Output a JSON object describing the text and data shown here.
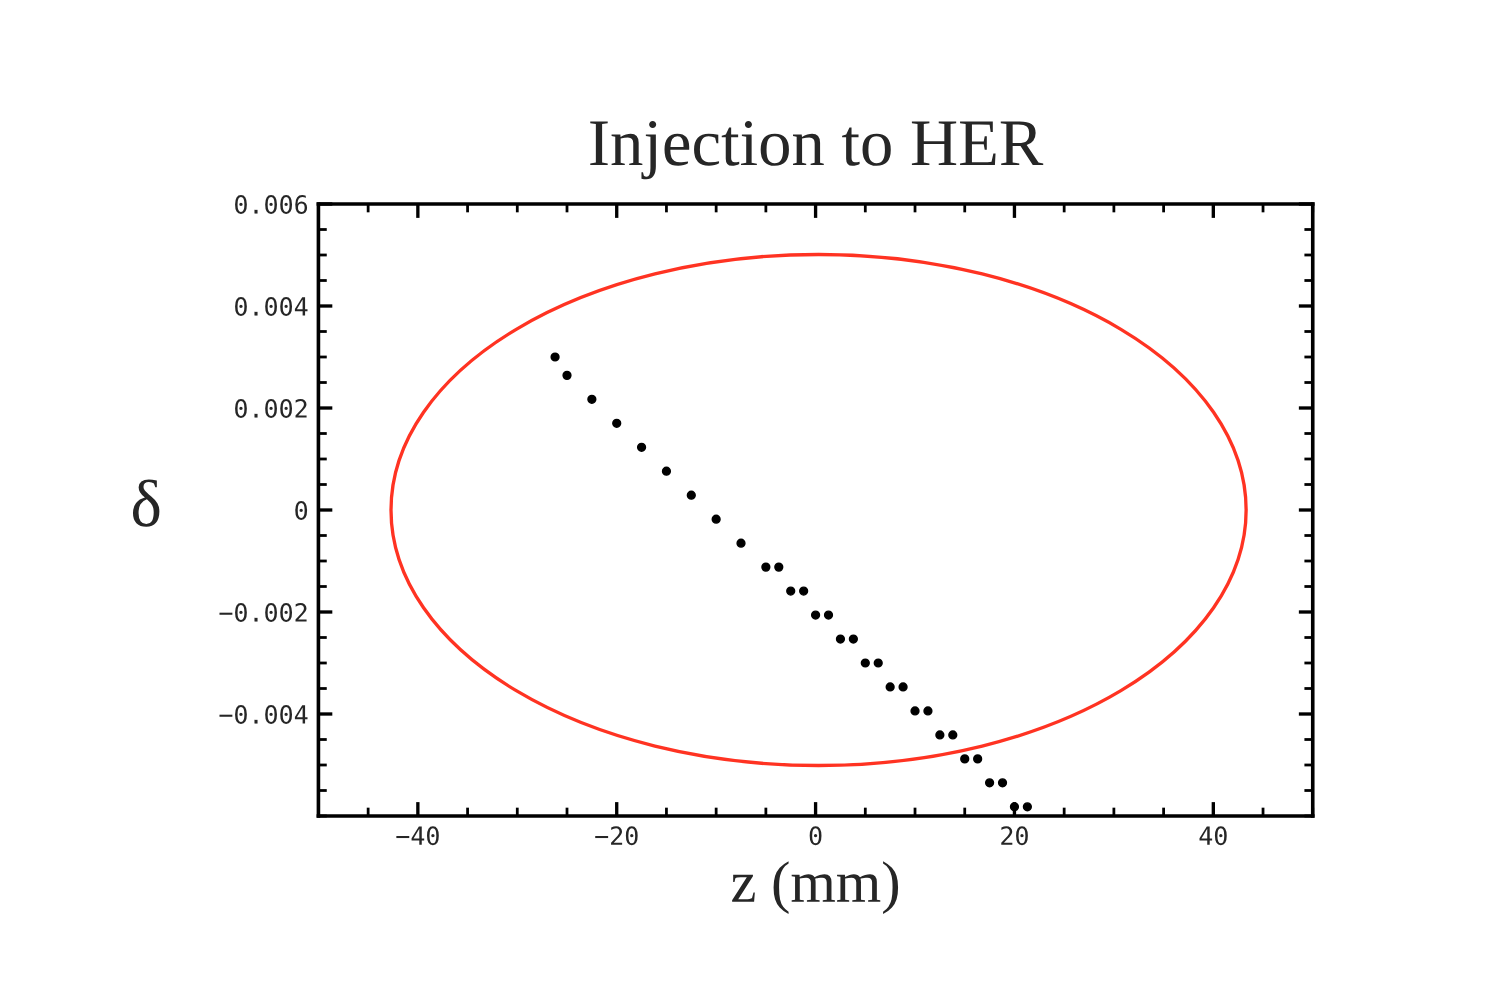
{
  "chart_data": {
    "type": "scatter",
    "title": "Injection to HER",
    "xlabel": "z (mm)",
    "ylabel": "δ",
    "xlim": [
      -50,
      50
    ],
    "ylim": [
      -0.006,
      0.006
    ],
    "xticks": [
      {
        "value": -40,
        "label": "−40"
      },
      {
        "value": -20,
        "label": "−20"
      },
      0,
      20,
      40
    ],
    "yticks": [
      {
        "value": -0.004,
        "label": "−0.004"
      },
      {
        "value": -0.002,
        "label": "−0.002"
      },
      0,
      0.002,
      0.004,
      0.006
    ],
    "grid": false,
    "legend": false,
    "series": [
      {
        "type": "scatter",
        "color": "#000000",
        "marker": "circle",
        "x": [
          -26.2,
          -25,
          -22.5,
          -20,
          -17.5,
          -15,
          -12.5,
          -10,
          -7.5,
          -5,
          -2.5,
          0,
          2.5,
          5,
          7.5,
          10,
          12.5,
          15,
          17.5,
          20,
          -3.7,
          -1.2,
          1.3,
          3.8,
          6.3,
          8.8,
          11.3,
          13.8,
          16.3,
          18.8,
          21.3
        ],
        "values": [
          0.003,
          0.00264,
          0.00217,
          0.0017,
          0.00123,
          0.00076,
          0.00029,
          -0.00018,
          -0.00065,
          -0.00112,
          -0.00159,
          -0.00206,
          -0.00253,
          -0.003,
          -0.00347,
          -0.00394,
          -0.00441,
          -0.00488,
          -0.00535,
          -0.00582,
          -0.00112,
          -0.00159,
          -0.00206,
          -0.00253,
          -0.003,
          -0.00347,
          -0.00394,
          -0.00441,
          -0.00488,
          -0.00535,
          -0.00582
        ]
      }
    ]
  }
}
